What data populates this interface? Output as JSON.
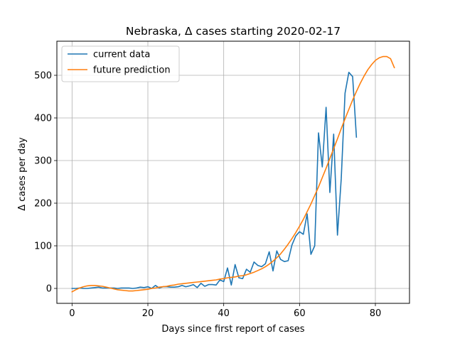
{
  "chart_data": {
    "type": "line",
    "title": "Nebraska, Δ cases starting 2020-02-17",
    "xlabel": "Days since first report of cases",
    "ylabel": "Δ cases per day",
    "xlim": [
      -4,
      89
    ],
    "ylim": [
      -35,
      580
    ],
    "xticks": [
      0,
      20,
      40,
      60,
      80
    ],
    "yticks": [
      0,
      100,
      200,
      300,
      400,
      500
    ],
    "grid": true,
    "legend_position": "top-left",
    "series": [
      {
        "name": "current data",
        "color": "#1f77b4",
        "x": [
          0,
          1,
          2,
          3,
          4,
          5,
          6,
          7,
          8,
          9,
          10,
          11,
          12,
          13,
          14,
          15,
          16,
          17,
          18,
          19,
          20,
          21,
          22,
          23,
          24,
          25,
          26,
          27,
          28,
          29,
          30,
          31,
          32,
          33,
          34,
          35,
          36,
          37,
          38,
          39,
          40,
          41,
          42,
          43,
          44,
          45,
          46,
          47,
          48,
          49,
          50,
          51,
          52,
          53,
          54,
          55,
          56,
          57,
          58,
          59,
          60,
          61,
          62,
          63,
          64,
          65,
          66,
          67,
          68,
          69,
          70,
          71,
          72,
          73,
          74,
          75
        ],
        "y": [
          0,
          0,
          1,
          0,
          0,
          1,
          2,
          3,
          1,
          1,
          1,
          1,
          0,
          1,
          1,
          1,
          0,
          1,
          3,
          2,
          4,
          0,
          7,
          1,
          4,
          4,
          3,
          3,
          4,
          7,
          4,
          6,
          9,
          2,
          12,
          5,
          9,
          9,
          8,
          20,
          16,
          48,
          8,
          56,
          25,
          23,
          45,
          38,
          62,
          54,
          51,
          58,
          86,
          41,
          88,
          68,
          63,
          65,
          102,
          123,
          133,
          127,
          175,
          80,
          100,
          365,
          285,
          425,
          225,
          362,
          125,
          258,
          458,
          507,
          497,
          355
        ]
      },
      {
        "name": "future prediction",
        "color": "#ff7f0e",
        "x": [
          0,
          1,
          2,
          3,
          4,
          5,
          6,
          7,
          8,
          9,
          10,
          11,
          12,
          13,
          14,
          15,
          16,
          17,
          18,
          19,
          20,
          21,
          22,
          23,
          24,
          25,
          26,
          27,
          28,
          29,
          30,
          31,
          32,
          33,
          34,
          35,
          36,
          37,
          38,
          39,
          40,
          41,
          42,
          43,
          44,
          45,
          46,
          47,
          48,
          49,
          50,
          51,
          52,
          53,
          54,
          55,
          56,
          57,
          58,
          59,
          60,
          61,
          62,
          63,
          64,
          65,
          66,
          67,
          68,
          69,
          70,
          71,
          72,
          73,
          74,
          75,
          76,
          77,
          78,
          79,
          80,
          81,
          82,
          83,
          84,
          85
        ],
        "y": [
          -8,
          -3,
          1,
          4,
          6,
          7,
          7,
          6,
          5,
          3,
          1,
          -1,
          -3,
          -4,
          -5,
          -6,
          -6,
          -5,
          -4,
          -3,
          -2,
          0,
          1,
          3,
          4,
          5,
          7,
          8,
          10,
          11,
          12,
          13,
          14,
          15,
          16,
          17,
          18,
          19,
          20,
          22,
          23,
          25,
          26,
          27,
          29,
          30,
          32,
          35,
          38,
          42,
          46,
          51,
          57,
          64,
          72,
          81,
          92,
          104,
          117,
          131,
          146,
          162,
          180,
          198,
          218,
          238,
          260,
          282,
          305,
          328,
          351,
          375,
          398,
          420,
          442,
          462,
          481,
          498,
          513,
          525,
          535,
          541,
          544,
          544,
          539,
          518
        ]
      }
    ]
  }
}
